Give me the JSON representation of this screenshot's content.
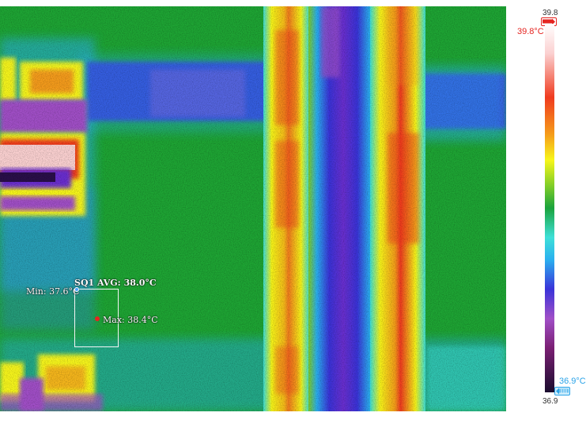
{
  "image": {
    "type": "thermal camera frame",
    "palette": [
      "#1a0d2e",
      "#7a1f73",
      "#a14fc7",
      "#3a33d9",
      "#2ab0ef",
      "#3ee0d8",
      "#1aa33c",
      "#7fcd28",
      "#f7f61a",
      "#f59c1a",
      "#f03b1f",
      "#fbd1d1",
      "#ffffff"
    ]
  },
  "roi": {
    "title": "SQ1 AVG: 38.0°C",
    "min_label": "Min: 37.6°C",
    "max_label": "Max: 38.4°C",
    "min_color": "#4da3ff",
    "max_color": "#e52420"
  },
  "scale": {
    "top_value": "39.8",
    "bottom_value": "36.9",
    "max_marker_label": "39.8°C",
    "min_marker_label": "36.9°C",
    "max_color": "#e52420",
    "min_color": "#2aa3e8"
  }
}
